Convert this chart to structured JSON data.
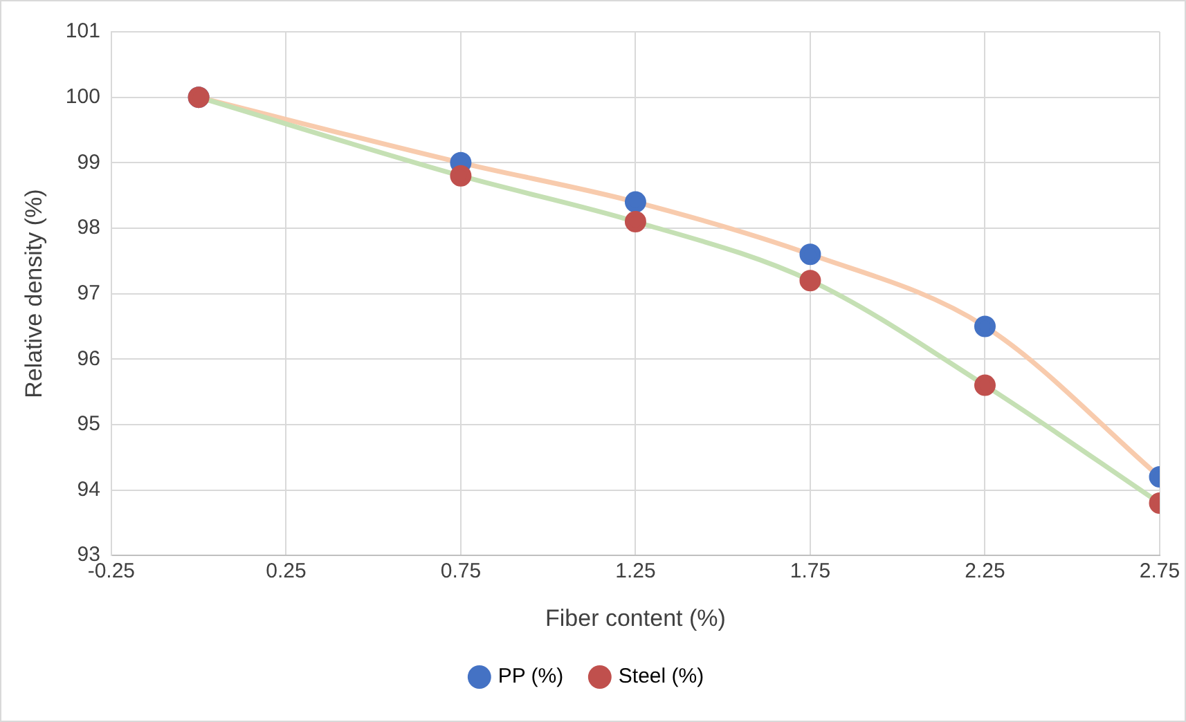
{
  "chart_data": {
    "type": "line",
    "xlabel": "Fiber content (%)",
    "ylabel": "Relative density (%)",
    "x": [
      0,
      0.75,
      1.25,
      1.75,
      2.25,
      2.75
    ],
    "series": [
      {
        "name": "PP (%)",
        "color": "#f8cbad",
        "colors": [
          "#4472c4",
          "#4472c4",
          "#4472c4",
          "#4472c4",
          "#4472c4",
          "#4472c4"
        ],
        "values": [
          100,
          99,
          98.4,
          97.6,
          96.5,
          94.2
        ]
      },
      {
        "name": "Steel (%)",
        "color": "#c5e0b4",
        "colors": [
          "#c0504d",
          "#c0504d",
          "#c0504d",
          "#c0504d",
          "#c0504d",
          "#c0504d"
        ],
        "values": [
          100,
          98.8,
          98.1,
          97.2,
          95.6,
          93.8
        ]
      }
    ],
    "xlim": [
      -0.25,
      2.75
    ],
    "xticks": [
      -0.25,
      0.25,
      0.75,
      1.25,
      1.75,
      2.25,
      2.75
    ],
    "ylim": [
      93,
      101
    ],
    "yticks": [
      93,
      94,
      95,
      96,
      97,
      98,
      99,
      100,
      101
    ],
    "grid": true,
    "legend": "bottom",
    "marker": "circle",
    "line_style": "solid"
  }
}
